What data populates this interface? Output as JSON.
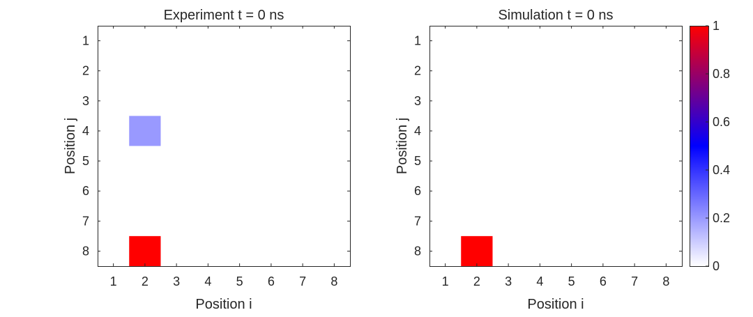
{
  "chart_data": [
    {
      "type": "heatmap",
      "title": "Experiment t = 0 ns",
      "xlabel": "Position i",
      "ylabel": "Position j",
      "x_ticks": [
        "1",
        "2",
        "3",
        "4",
        "5",
        "6",
        "7",
        "8"
      ],
      "y_ticks": [
        "1",
        "2",
        "3",
        "4",
        "5",
        "6",
        "7",
        "8"
      ],
      "xlim": [
        0.5,
        8.5
      ],
      "ylim": [
        0.5,
        8.5
      ],
      "y_direction": "reversed",
      "cells": [
        {
          "i": 2,
          "j": 4,
          "value": 0.2
        },
        {
          "i": 2,
          "j": 8,
          "value": 1.0
        }
      ],
      "default_value": 0
    },
    {
      "type": "heatmap",
      "title": "Simulation t = 0 ns",
      "xlabel": "Position i",
      "ylabel": "Position j",
      "x_ticks": [
        "1",
        "2",
        "3",
        "4",
        "5",
        "6",
        "7",
        "8"
      ],
      "y_ticks": [
        "1",
        "2",
        "3",
        "4",
        "5",
        "6",
        "7",
        "8"
      ],
      "xlim": [
        0.5,
        8.5
      ],
      "ylim": [
        0.5,
        8.5
      ],
      "y_direction": "reversed",
      "cells": [
        {
          "i": 2,
          "j": 8,
          "value": 1.0
        }
      ],
      "default_value": 0
    }
  ],
  "colorbar": {
    "range": [
      0,
      1
    ],
    "ticks": [
      "0",
      "0.2",
      "0.4",
      "0.6",
      "0.8",
      "1"
    ],
    "colormap_stops": [
      "#ffffff",
      "#0000ff",
      "#ff0000"
    ]
  }
}
